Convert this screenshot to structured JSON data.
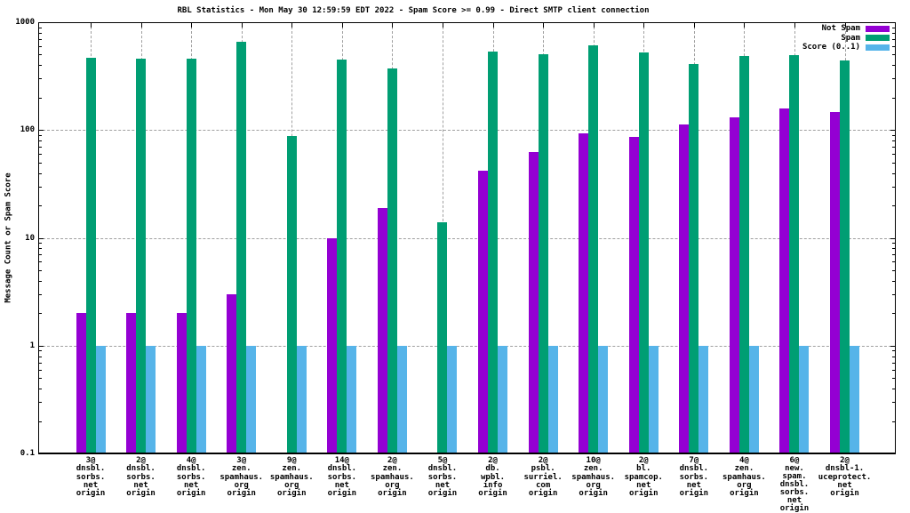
{
  "page": {
    "background": "#ffffff"
  },
  "colors": {
    "grid": "#a0a0a0",
    "axis": "#000000",
    "text": "#000000"
  },
  "chart_data": {
    "type": "bar",
    "title": "RBL Statistics - Mon May 30 12:59:59 EDT 2022 - Spam Score >= 0.99 - Direct SMTP client connection",
    "xlabel": "",
    "ylabel": "Message Count or Spam Score",
    "y_scale": "log",
    "ylim": [
      0.1,
      1000
    ],
    "y_tick_labels": [
      "0.1",
      "1",
      "10",
      "100",
      "1000"
    ],
    "grid": true,
    "legend_position": "top-right",
    "categories": [
      [
        "3@",
        "dnsbl.",
        "sorbs.",
        "net",
        "origin"
      ],
      [
        "2@",
        "dnsbl.",
        "sorbs.",
        "net",
        "origin"
      ],
      [
        "4@",
        "dnsbl.",
        "sorbs.",
        "net",
        "origin"
      ],
      [
        "3@",
        "zen.",
        "spamhaus.",
        "org",
        "origin"
      ],
      [
        "9@",
        "zen.",
        "spamhaus.",
        "org",
        "origin"
      ],
      [
        "14@",
        "dnsbl.",
        "sorbs.",
        "net",
        "origin"
      ],
      [
        "2@",
        "zen.",
        "spamhaus.",
        "org",
        "origin"
      ],
      [
        "5@",
        "dnsbl.",
        "sorbs.",
        "net",
        "origin"
      ],
      [
        "2@",
        "db.",
        "wpbl.",
        "info",
        "origin"
      ],
      [
        "2@",
        "psbl.",
        "surriel.",
        "com",
        "origin"
      ],
      [
        "10@",
        "zen.",
        "spamhaus.",
        "org",
        "origin"
      ],
      [
        "2@",
        "bl.",
        "spamcop.",
        "net",
        "origin"
      ],
      [
        "7@",
        "dnsbl.",
        "sorbs.",
        "net",
        "origin"
      ],
      [
        "4@",
        "zen.",
        "spamhaus.",
        "org",
        "origin"
      ],
      [
        "6@",
        "new.",
        "spam.",
        "dnsbl.",
        "sorbs.",
        "net",
        "origin"
      ],
      [
        "2@",
        "dnsbl-1.",
        "uceprotect.",
        "net",
        "origin"
      ]
    ],
    "series": [
      {
        "name": "Not Spam",
        "color": "#9400d3",
        "values": [
          2,
          2,
          2,
          3,
          null,
          10,
          19,
          null,
          42,
          63,
          94,
          87,
          112,
          132,
          159,
          148
        ]
      },
      {
        "name": "Spam",
        "color": "#009e73",
        "values": [
          465,
          460,
          460,
          660,
          88,
          450,
          370,
          14,
          530,
          505,
          610,
          525,
          410,
          490,
          495,
          445
        ]
      },
      {
        "name": "Score (0..1)",
        "color": "#56b4e9",
        "values": [
          1,
          1,
          1,
          1,
          1,
          1,
          1,
          1,
          1,
          1,
          1,
          1,
          1,
          1,
          1,
          1
        ]
      }
    ]
  }
}
